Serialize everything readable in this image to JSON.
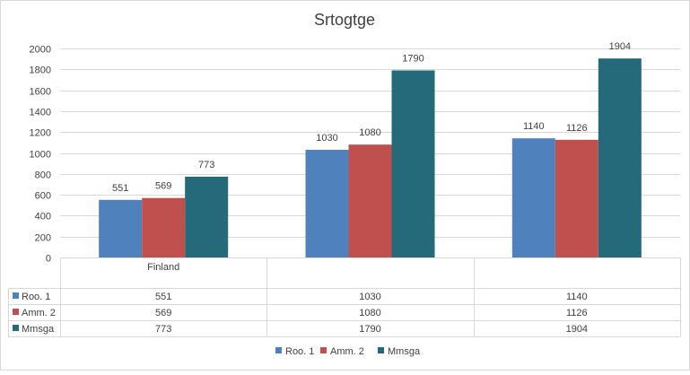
{
  "chart_data": {
    "type": "bar",
    "title": "Srtogtge",
    "categories": [
      "Finland",
      "",
      ""
    ],
    "ylim": [
      0,
      2000
    ],
    "y_ticks": [
      0,
      200,
      400,
      600,
      800,
      1000,
      1200,
      1400,
      1600,
      1800,
      2000
    ],
    "grid": true,
    "legend_position": "bottom",
    "data_table": true,
    "series": [
      {
        "name": "Roo. 1",
        "values": [
          551,
          1030,
          1140
        ],
        "color": "#4f81bd"
      },
      {
        "name": "Amm. 2",
        "values": [
          569,
          1080,
          1126
        ],
        "color": "#c0504d"
      },
      {
        "name": "Mmsga",
        "values": [
          773,
          1790,
          1904
        ],
        "color": "#246a7a"
      }
    ]
  }
}
